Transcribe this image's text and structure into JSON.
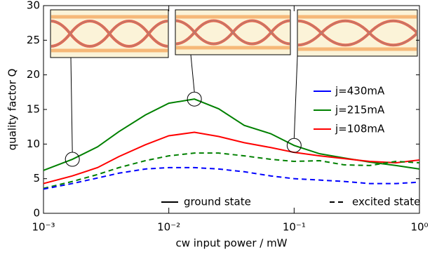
{
  "chart_data": {
    "type": "line",
    "xlabel": "cw input power / mW",
    "ylabel": "quality factor Q",
    "xscale": "log",
    "xlim": [
      0.001,
      1
    ],
    "ylim": [
      0,
      30
    ],
    "xticks": [
      {
        "value": 0.001,
        "label": "10⁻³"
      },
      {
        "value": 0.01,
        "label": "10⁻²"
      },
      {
        "value": 0.1,
        "label": "10⁻¹"
      },
      {
        "value": 1,
        "label": "10⁰"
      }
    ],
    "yticks": [
      0,
      5,
      10,
      15,
      20,
      25,
      30
    ],
    "x": [
      0.001,
      0.0017,
      0.0027,
      0.004,
      0.0065,
      0.01,
      0.016,
      0.025,
      0.04,
      0.065,
      0.1,
      0.16,
      0.25,
      0.4,
      0.65,
      1
    ],
    "series": [
      {
        "color": "#008000",
        "style": "solid",
        "values": [
          6.2,
          7.8,
          9.6,
          11.8,
          14.2,
          15.9,
          16.5,
          15.1,
          12.7,
          11.5,
          9.8,
          8.6,
          8.0,
          7.4,
          6.9,
          6.4
        ]
      },
      {
        "color": "#ff0000",
        "style": "solid",
        "values": [
          4.3,
          5.4,
          6.6,
          8.2,
          9.9,
          11.2,
          11.7,
          11.1,
          10.2,
          9.5,
          8.8,
          8.3,
          7.9,
          7.5,
          7.3,
          7.7
        ]
      },
      {
        "color": "#008000",
        "style": "dashed",
        "values": [
          3.6,
          4.6,
          5.6,
          6.6,
          7.6,
          8.3,
          8.7,
          8.7,
          8.3,
          7.8,
          7.5,
          7.6,
          7.0,
          6.9,
          7.5,
          7.3
        ]
      },
      {
        "color": "#0000ff",
        "style": "dashed",
        "values": [
          3.5,
          4.3,
          5.1,
          5.8,
          6.4,
          6.6,
          6.6,
          6.4,
          6.0,
          5.4,
          5.0,
          4.8,
          4.6,
          4.3,
          4.3,
          4.5
        ]
      }
    ],
    "current_legend": [
      {
        "label": "j=430mA",
        "color": "#0000ff"
      },
      {
        "label": "j=215mA",
        "color": "#008000"
      },
      {
        "label": "j=108mA",
        "color": "#ff0000"
      }
    ],
    "style_legend": [
      {
        "label": "ground state",
        "style": "solid"
      },
      {
        "label": "excited state",
        "style": "dashed"
      }
    ]
  }
}
